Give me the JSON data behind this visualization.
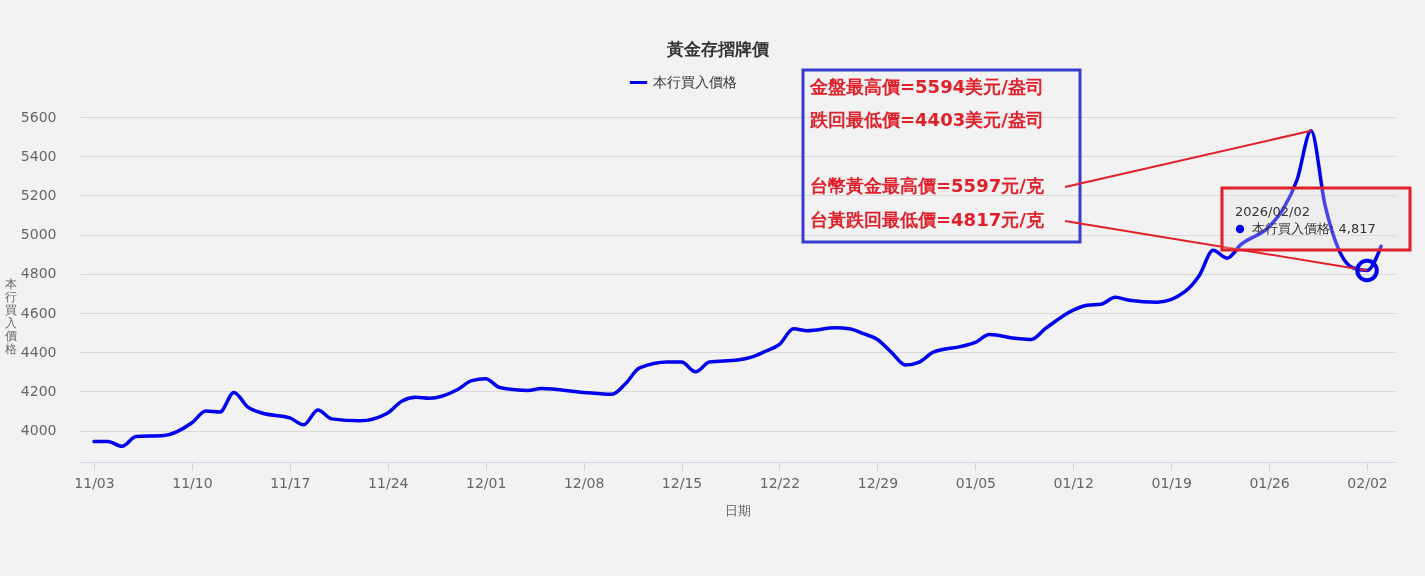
{
  "chart_data": {
    "type": "line",
    "title": "黃金存摺牌價",
    "xlabel": "日期",
    "ylabel": "本行買入價格",
    "x": [
      "2025-11-03",
      "2025-11-04",
      "2025-11-05",
      "2025-11-06",
      "2025-11-08",
      "2025-11-10",
      "2025-11-11",
      "2025-11-12",
      "2025-11-13",
      "2025-11-14",
      "2025-11-15",
      "2025-11-17",
      "2025-11-18",
      "2025-11-19",
      "2025-11-20",
      "2025-11-22",
      "2025-11-24",
      "2025-11-25",
      "2025-11-26",
      "2025-11-27",
      "2025-11-29",
      "2025-11-30",
      "2025-12-01",
      "2025-12-02",
      "2025-12-04",
      "2025-12-05",
      "2025-12-08",
      "2025-12-10",
      "2025-12-11",
      "2025-12-12",
      "2025-12-14",
      "2025-12-15",
      "2025-12-16",
      "2025-12-17",
      "2025-12-19",
      "2025-12-20",
      "2025-12-21",
      "2025-12-22",
      "2025-12-23",
      "2025-12-24",
      "2025-12-26",
      "2025-12-27",
      "2025-12-28",
      "2025-12-29",
      "2025-12-30",
      "2025-12-31",
      "2026-01-01",
      "2026-01-02",
      "2026-01-04",
      "2026-01-05",
      "2026-01-06",
      "2026-01-08",
      "2026-01-09",
      "2026-01-10",
      "2026-01-12",
      "2026-01-13",
      "2026-01-14",
      "2026-01-15",
      "2026-01-16",
      "2026-01-18",
      "2026-01-20",
      "2026-01-21",
      "2026-01-22",
      "2026-01-23",
      "2026-01-24",
      "2026-01-26",
      "2026-01-27",
      "2026-01-28",
      "2026-01-29",
      "2026-01-30",
      "2026-01-31",
      "2026-02-01",
      "2026-02-02",
      "2026-02-03"
    ],
    "series": [
      {
        "name": "本行買入價格",
        "color": "#0000ee",
        "values": [
          3945,
          3945,
          3920,
          3970,
          3975,
          4040,
          4100,
          4095,
          4195,
          4120,
          4090,
          4065,
          4030,
          4105,
          4060,
          4050,
          4090,
          4150,
          4170,
          4165,
          4210,
          4255,
          4265,
          4220,
          4205,
          4215,
          4195,
          4185,
          4240,
          4320,
          4350,
          4350,
          4300,
          4350,
          4360,
          4375,
          4405,
          4440,
          4520,
          4510,
          4525,
          4520,
          4495,
          4465,
          4400,
          4335,
          4350,
          4400,
          4430,
          4450,
          4490,
          4470,
          4465,
          4520,
          4615,
          4640,
          4645,
          4680,
          4665,
          4655,
          4710,
          4790,
          4920,
          4880,
          4950,
          5040,
          5130,
          5280,
          5530,
          5150,
          4920,
          4830,
          4817,
          4940
        ]
      }
    ],
    "xlim": [
      "2025-11-02",
      "2026-02-04"
    ],
    "xticks": [
      {
        "value": "2025-11-03",
        "label": "11/03"
      },
      {
        "value": "2025-11-10",
        "label": "11/10"
      },
      {
        "value": "2025-11-17",
        "label": "11/17"
      },
      {
        "value": "2025-11-24",
        "label": "11/24"
      },
      {
        "value": "2025-12-01",
        "label": "12/01"
      },
      {
        "value": "2025-12-08",
        "label": "12/08"
      },
      {
        "value": "2025-12-15",
        "label": "12/15"
      },
      {
        "value": "2025-12-22",
        "label": "12/22"
      },
      {
        "value": "2025-12-29",
        "label": "12/29"
      },
      {
        "value": "2026-01-05",
        "label": "01/05"
      },
      {
        "value": "2026-01-12",
        "label": "01/12"
      },
      {
        "value": "2026-01-19",
        "label": "01/19"
      },
      {
        "value": "2026-01-26",
        "label": "01/26"
      },
      {
        "value": "2026-02-02",
        "label": "02/02"
      }
    ],
    "ylim": [
      3840,
      5600
    ],
    "yticks": [
      4000,
      4200,
      4400,
      4600,
      4800,
      5000,
      5200,
      5400,
      5600
    ],
    "grid": "y",
    "legend": "top",
    "annotations": [
      "金盤最高價=5594美元/盎司",
      "跌回最低價=4403美元/盎司",
      {
        "text": "台幣黃金最高價=5597元/克",
        "x": "2026-01-29",
        "y": 5530
      },
      {
        "text": "台黃跌回最低價=4817元/克",
        "x": "2026-02-02",
        "y": 4817
      },
      "2026/02/02",
      "本行買入價格: 4,817"
    ]
  }
}
